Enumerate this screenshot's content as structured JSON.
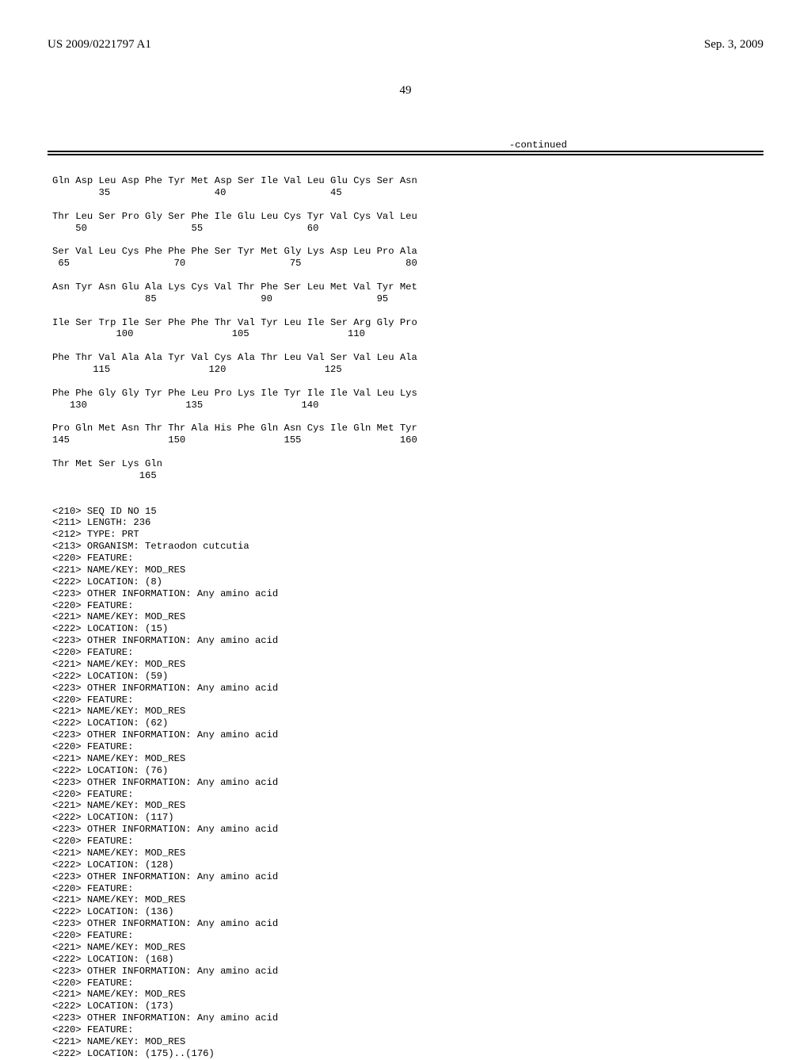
{
  "header": {
    "publication_number": "US 2009/0221797 A1",
    "publication_date": "Sep. 3, 2009",
    "page_number": "49",
    "continued_label": "-continued"
  },
  "sequence_block": "Gln Asp Leu Asp Phe Tyr Met Asp Ser Ile Val Leu Glu Cys Ser Asn\n        35                  40                  45\n\nThr Leu Ser Pro Gly Ser Phe Ile Glu Leu Cys Tyr Val Cys Val Leu\n    50                  55                  60\n\nSer Val Leu Cys Phe Phe Phe Ser Tyr Met Gly Lys Asp Leu Pro Ala\n 65                  70                  75                  80\n\nAsn Tyr Asn Glu Ala Lys Cys Val Thr Phe Ser Leu Met Val Tyr Met\n                85                  90                  95\n\nIle Ser Trp Ile Ser Phe Phe Thr Val Tyr Leu Ile Ser Arg Gly Pro\n           100                 105                 110\n\nPhe Thr Val Ala Ala Tyr Val Cys Ala Thr Leu Val Ser Val Leu Ala\n       115                 120                 125\n\nPhe Phe Gly Gly Tyr Phe Leu Pro Lys Ile Tyr Ile Ile Val Leu Lys\n   130                 135                 140\n\nPro Gln Met Asn Thr Thr Ala His Phe Gln Asn Cys Ile Gln Met Tyr\n145                 150                 155                 160\n\nThr Met Ser Lys Gln\n               165\n\n\n<210> SEQ ID NO 15\n<211> LENGTH: 236\n<212> TYPE: PRT\n<213> ORGANISM: Tetraodon cutcutia\n<220> FEATURE:\n<221> NAME/KEY: MOD_RES\n<222> LOCATION: (8)\n<223> OTHER INFORMATION: Any amino acid\n<220> FEATURE:\n<221> NAME/KEY: MOD_RES\n<222> LOCATION: (15)\n<223> OTHER INFORMATION: Any amino acid\n<220> FEATURE:\n<221> NAME/KEY: MOD_RES\n<222> LOCATION: (59)\n<223> OTHER INFORMATION: Any amino acid\n<220> FEATURE:\n<221> NAME/KEY: MOD_RES\n<222> LOCATION: (62)\n<223> OTHER INFORMATION: Any amino acid\n<220> FEATURE:\n<221> NAME/KEY: MOD_RES\n<222> LOCATION: (76)\n<223> OTHER INFORMATION: Any amino acid\n<220> FEATURE:\n<221> NAME/KEY: MOD_RES\n<222> LOCATION: (117)\n<223> OTHER INFORMATION: Any amino acid\n<220> FEATURE:\n<221> NAME/KEY: MOD_RES\n<222> LOCATION: (128)\n<223> OTHER INFORMATION: Any amino acid\n<220> FEATURE:\n<221> NAME/KEY: MOD_RES\n<222> LOCATION: (136)\n<223> OTHER INFORMATION: Any amino acid\n<220> FEATURE:\n<221> NAME/KEY: MOD_RES\n<222> LOCATION: (168)\n<223> OTHER INFORMATION: Any amino acid\n<220> FEATURE:\n<221> NAME/KEY: MOD_RES\n<222> LOCATION: (173)\n<223> OTHER INFORMATION: Any amino acid\n<220> FEATURE:\n<221> NAME/KEY: MOD_RES\n<222> LOCATION: (175)..(176)"
}
